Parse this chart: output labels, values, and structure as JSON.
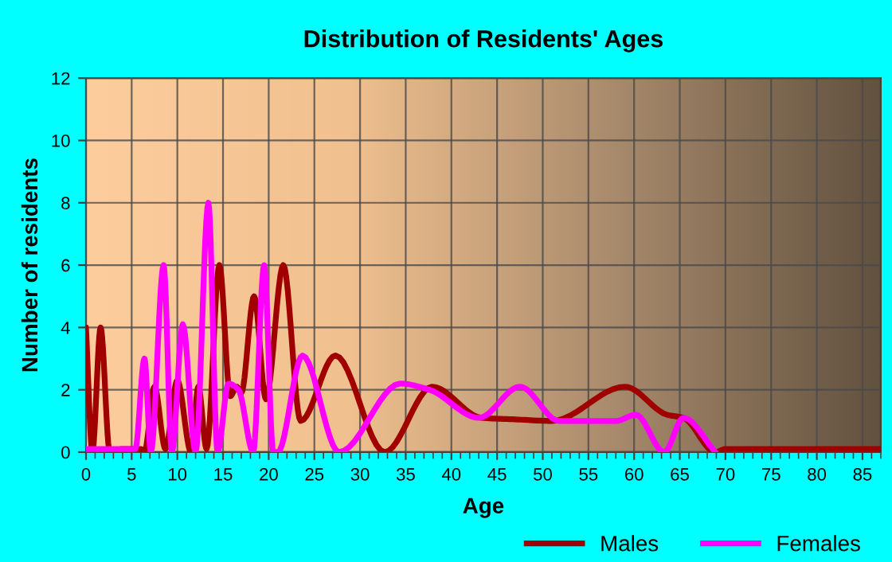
{
  "chart_data": {
    "type": "line",
    "title": "Distribution of Residents' Ages",
    "xlabel": "Age",
    "ylabel": "Number of residents",
    "xlim": [
      0,
      87
    ],
    "xticks": [
      0,
      5,
      10,
      15,
      20,
      25,
      30,
      35,
      40,
      45,
      50,
      55,
      60,
      65,
      70,
      75,
      80,
      85
    ],
    "ylim": [
      0,
      12
    ],
    "yticks": [
      0,
      2,
      4,
      6,
      8,
      10,
      12
    ],
    "grid": true,
    "legend": "bottom",
    "marker": "none",
    "line_style": "solid",
    "series": [
      {
        "name": "Males",
        "color": "#a00000",
        "x": [
          0,
          0.7,
          1.6,
          2.6,
          4,
          6,
          6.4,
          7.5,
          8.7,
          10,
          11.5,
          12.3,
          13.2,
          14.6,
          15.8,
          16.5,
          17,
          18.4,
          19.7,
          21.6,
          23.5,
          27.3,
          32.7,
          37.9,
          43.3,
          47,
          51,
          59,
          63.6,
          65.4,
          68.9,
          70,
          87
        ],
        "values": [
          4,
          0,
          4,
          0,
          0.1,
          0.1,
          0,
          2.1,
          0.1,
          2.3,
          0,
          2.1,
          0.1,
          6,
          1.8,
          2.1,
          1.9,
          5,
          1.7,
          6,
          1,
          3.1,
          0,
          2.1,
          1.1,
          1.05,
          1,
          2.1,
          1.2,
          1.1,
          0,
          0.1,
          0.1
        ]
      },
      {
        "name": "Females",
        "color": "#ff00ff",
        "x": [
          0,
          5.4,
          6.4,
          7.1,
          8.5,
          9.4,
          10.6,
          12,
          13.4,
          14.4,
          15.6,
          16.7,
          18.3,
          19.5,
          20.5,
          21,
          23.7,
          27.7,
          34.4,
          37.6,
          43,
          47.5,
          51.8,
          58,
          60.2,
          63.3,
          65.4,
          68.9
        ],
        "values": [
          0.1,
          0.1,
          3,
          0,
          6,
          0,
          4.1,
          0,
          8,
          0,
          2.2,
          2,
          0,
          6,
          0,
          0,
          3.1,
          0,
          2.2,
          2,
          1.1,
          2.1,
          1,
          1,
          1.2,
          0,
          1.1,
          0
        ]
      }
    ]
  }
}
